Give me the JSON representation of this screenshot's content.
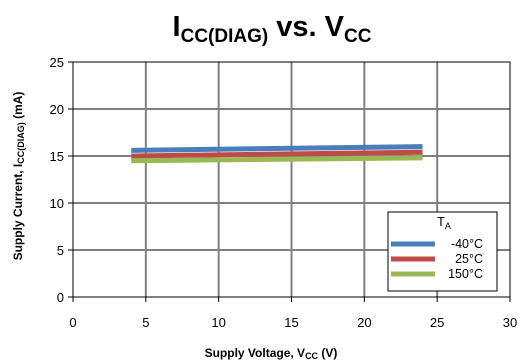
{
  "chart_data": {
    "type": "line",
    "title": {
      "main_1": "I",
      "sub_1": "CC(DIAG)",
      "middle": " vs. V",
      "sub_2": "CC"
    },
    "xlabel": {
      "main": "Supply Voltage, V",
      "sub": "CC",
      "suffix": " (V)"
    },
    "ylabel": {
      "main": "Supply Current, I",
      "sub": "CC(DIAG)",
      "suffix": " (mA)"
    },
    "xlim": [
      0,
      30
    ],
    "ylim": [
      0,
      25
    ],
    "x_ticks": [
      0,
      5,
      10,
      15,
      20,
      25,
      30
    ],
    "x_tick_labels": [
      "0",
      "5",
      "10",
      "15",
      "20",
      "25",
      "30"
    ],
    "y_ticks": [
      0,
      5,
      10,
      15,
      20,
      25
    ],
    "y_tick_labels": [
      "0",
      "5",
      "10",
      "15",
      "20",
      "25"
    ],
    "grid": true,
    "legend": {
      "title_main": "T",
      "title_sub": "A",
      "placement": "bottom-right"
    },
    "series": [
      {
        "name": "-40°C",
        "color": "#4a7ebb",
        "x": [
          4,
          24
        ],
        "y": [
          15.6,
          16.0
        ]
      },
      {
        "name": "25°C",
        "color": "#be4b48",
        "x": [
          4,
          24
        ],
        "y": [
          15.0,
          15.4
        ]
      },
      {
        "name": "150°C",
        "color": "#98b954",
        "x": [
          4,
          24
        ],
        "y": [
          14.5,
          14.8
        ]
      }
    ]
  }
}
